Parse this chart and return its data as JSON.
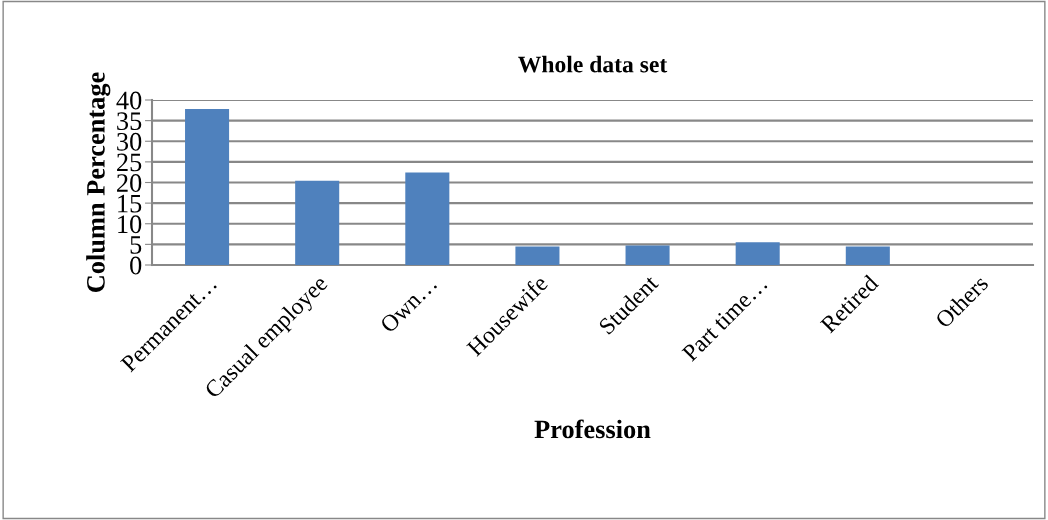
{
  "chart_data": {
    "type": "bar",
    "title": "Whole data set",
    "xlabel": "Profession",
    "ylabel": "Column Percentage",
    "categories": [
      "Permanent…",
      "Casual employee",
      "Own…",
      "Housewife",
      "Student",
      "Part time…",
      "Retired",
      "Others"
    ],
    "values": [
      37.8,
      20.4,
      22.4,
      4.5,
      4.7,
      5.5,
      4.5,
      0
    ],
    "color": "#4f81bd",
    "ylim": [
      0,
      40
    ],
    "yticks": [
      0,
      5,
      10,
      15,
      20,
      25,
      30,
      35,
      40
    ],
    "grid": "y"
  }
}
